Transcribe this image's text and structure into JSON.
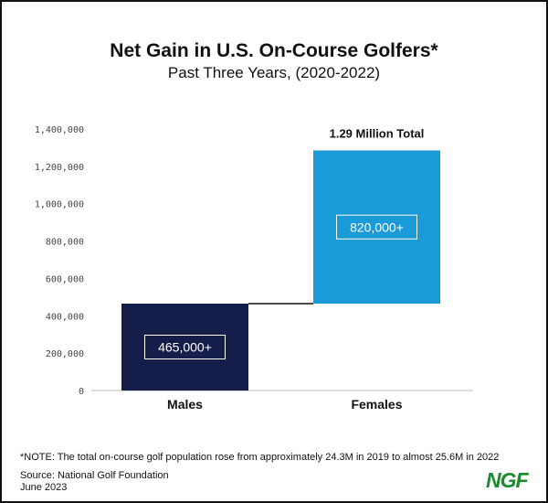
{
  "title": "Net Gain in U.S. On-Course Golfers*",
  "subtitle": "Past Three Years, (2020-2022)",
  "chart_data": {
    "type": "waterfall",
    "title": "Net Gain in U.S. On-Course Golfers*",
    "subtitle": "Past Three Years, (2020-2022)",
    "categories": [
      "Males",
      "Females"
    ],
    "values": [
      465000,
      820000
    ],
    "value_labels": [
      "465,000+",
      "820,000+"
    ],
    "total_label": "1.29 Million Total",
    "y_ticks": [
      "0",
      "200,000",
      "400,000",
      "600,000",
      "800,000",
      "1,000,000",
      "1,200,000",
      "1,400,000"
    ],
    "ylim": [
      0,
      1400000
    ],
    "colors": [
      "#151d4b",
      "#1a9ad6"
    ],
    "grid": false,
    "legend": "none"
  },
  "footer": {
    "note": "*NOTE: The total on-course golf population rose from approximately 24.3M in 2019 to almost 25.6M in 2022",
    "source": "Source: National Golf Foundation",
    "date": "June 2023",
    "logo_text": "NGF"
  }
}
